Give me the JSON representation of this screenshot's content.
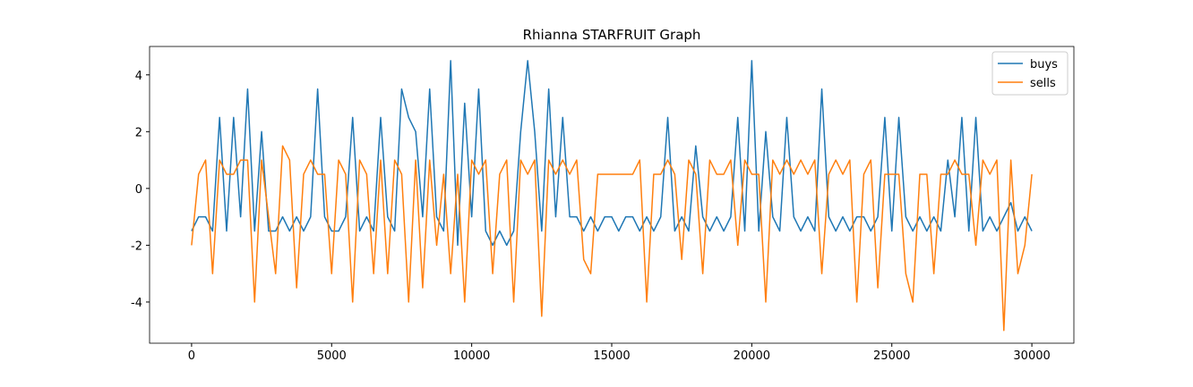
{
  "chart_data": {
    "type": "line",
    "title": "Rhianna STARFRUIT Graph",
    "x": [
      0,
      250,
      500,
      750,
      1000,
      1250,
      1500,
      1750,
      2000,
      2250,
      2500,
      2750,
      3000,
      3250,
      3500,
      3750,
      4000,
      4250,
      4500,
      4750,
      5000,
      5250,
      5500,
      5750,
      6000,
      6250,
      6500,
      6750,
      7000,
      7250,
      7500,
      7750,
      8000,
      8250,
      8500,
      8750,
      9000,
      9250,
      9500,
      9750,
      10000,
      10250,
      10500,
      10750,
      11000,
      11250,
      11500,
      11750,
      12000,
      12250,
      12500,
      12750,
      13000,
      13250,
      13500,
      13750,
      14000,
      14250,
      14500,
      14750,
      15000,
      15250,
      15500,
      15750,
      16000,
      16250,
      16500,
      16750,
      17000,
      17250,
      17500,
      17750,
      18000,
      18250,
      18500,
      18750,
      19000,
      19250,
      19500,
      19750,
      20000,
      20250,
      20500,
      20750,
      21000,
      21250,
      21500,
      21750,
      22000,
      22250,
      22500,
      22750,
      23000,
      23250,
      23500,
      23750,
      24000,
      24250,
      24500,
      24750,
      25000,
      25250,
      25500,
      25750,
      26000,
      26250,
      26500,
      26750,
      27000,
      27250,
      27500,
      27750,
      28000,
      28250,
      28500,
      28750,
      29000,
      29250,
      29500,
      29750,
      30000
    ],
    "series": [
      {
        "name": "buys",
        "color": "#1f77b4",
        "values": [
          -1.5,
          -1,
          -1,
          -1.5,
          2.5,
          -1.5,
          2.5,
          -1,
          3.5,
          -1.5,
          2,
          -1.5,
          -1.5,
          -1,
          -1.5,
          -1,
          -1.5,
          -1,
          3.5,
          -1,
          -1.5,
          -1.5,
          -1,
          2.5,
          -1.5,
          -1,
          -1.5,
          2.5,
          -1,
          -1.5,
          3.5,
          2.5,
          2,
          -1,
          3.5,
          -1,
          -1.5,
          4.5,
          -2,
          3,
          -1,
          3.5,
          -1.5,
          -2,
          -1.5,
          -2,
          -1.5,
          2,
          4.5,
          2,
          -1.5,
          3.5,
          -1,
          2.5,
          -1,
          -1,
          -1.5,
          -1,
          -1.5,
          -1,
          -1,
          -1.5,
          -1,
          -1,
          -1.5,
          -1,
          -1.5,
          -1,
          2.5,
          -1.5,
          -1,
          -1.5,
          1.5,
          -1,
          -1.5,
          -1,
          -1.5,
          -1,
          2.5,
          -1.5,
          4.5,
          -1.5,
          2,
          -1,
          -1.5,
          2.5,
          -1,
          -1.5,
          -1,
          -1.5,
          3.5,
          -1,
          -1.5,
          -1,
          -1.5,
          -1,
          -1,
          -1.5,
          -1,
          2.5,
          -1.5,
          2.5,
          -1,
          -1.5,
          -1,
          -1.5,
          -1,
          -1.5,
          1,
          -1,
          2.5,
          -1.5,
          2.5,
          -1.5,
          -1,
          -1.5,
          -1,
          -0.5,
          -1.5,
          -1,
          -1.5
        ]
      },
      {
        "name": "sells",
        "color": "#ff7f0e",
        "values": [
          -2,
          0.5,
          1,
          -3,
          1,
          0.5,
          0.5,
          1,
          1,
          -4,
          1,
          -1,
          -3,
          1.5,
          1,
          -3.5,
          0.5,
          1,
          0.5,
          0.5,
          -3,
          1,
          0.5,
          -4,
          1,
          0.5,
          -3,
          1,
          -3,
          1,
          0.5,
          -4,
          1,
          -3.5,
          1,
          -2,
          0.5,
          -3,
          0.5,
          -4,
          1,
          0.5,
          1,
          -3,
          0.5,
          1,
          -4,
          1,
          0.5,
          1,
          -4.5,
          1,
          0.5,
          1,
          0.5,
          1,
          -2.5,
          -3,
          0.5,
          0.5,
          0.5,
          0.5,
          0.5,
          0.5,
          1,
          -4,
          0.5,
          0.5,
          1,
          0.5,
          -2.5,
          1,
          0.5,
          -3,
          1,
          0.5,
          0.5,
          1,
          -2,
          1,
          0.5,
          0.5,
          -4,
          1,
          0.5,
          1,
          0.5,
          1,
          0.5,
          1,
          -3,
          0.5,
          1,
          0.5,
          1,
          -4,
          0.5,
          1,
          -3.5,
          0.5,
          0.5,
          0.5,
          -3,
          -4,
          0.5,
          0.5,
          -3,
          0.5,
          0.5,
          1,
          0.5,
          0.5,
          -2,
          1,
          0.5,
          1,
          -5,
          1,
          -3,
          -2,
          0.5
        ]
      }
    ],
    "xlim": [
      -1500,
      31500
    ],
    "xticks": [
      0,
      5000,
      10000,
      15000,
      20000,
      25000,
      30000
    ],
    "ylim": [
      -5.45,
      5.0
    ],
    "yticks": [
      -4,
      -2,
      0,
      2,
      4
    ],
    "grid": false,
    "legend": "upper-right"
  }
}
